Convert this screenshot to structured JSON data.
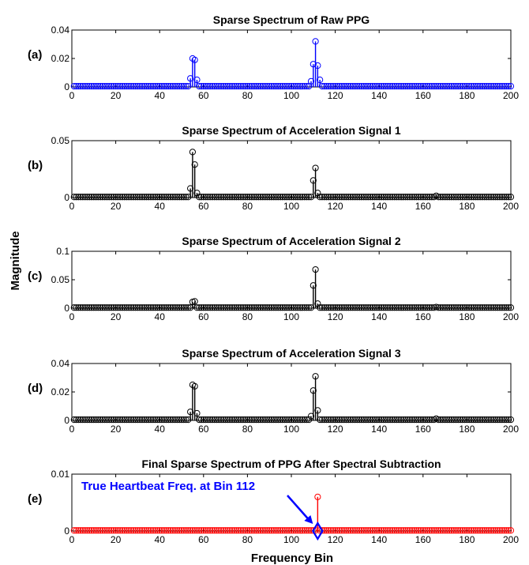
{
  "figure": {
    "ylabel": "Magnitude",
    "xlabel": "Frequency Bin"
  },
  "chart_data": [
    {
      "type": "stem",
      "panel_label": "(a)",
      "title": "Sparse Spectrum of Raw PPG",
      "color": "#0000ff",
      "xlim": [
        0,
        200
      ],
      "ylim": [
        0,
        0.04
      ],
      "xticks": [
        0,
        20,
        40,
        60,
        80,
        100,
        120,
        140,
        160,
        180,
        200
      ],
      "yticks": [
        0,
        0.02,
        0.04
      ],
      "ytick_labels": [
        "0",
        "0.02",
        "0.04"
      ],
      "baseline_value": 0.0005,
      "peaks": [
        [
          54,
          0.006
        ],
        [
          55,
          0.02
        ],
        [
          56,
          0.019
        ],
        [
          57,
          0.005
        ],
        [
          109,
          0.004
        ],
        [
          110,
          0.016
        ],
        [
          111,
          0.032
        ],
        [
          112,
          0.015
        ],
        [
          113,
          0.005
        ]
      ]
    },
    {
      "type": "stem",
      "panel_label": "(b)",
      "title": "Sparse Spectrum of Acceleration Signal 1",
      "color": "#000000",
      "xlim": [
        0,
        200
      ],
      "ylim": [
        0,
        0.05
      ],
      "xticks": [
        0,
        20,
        40,
        60,
        80,
        100,
        120,
        140,
        160,
        180,
        200
      ],
      "yticks": [
        0,
        0.05
      ],
      "ytick_labels": [
        "0",
        "0.05"
      ],
      "baseline_value": 0.0005,
      "peaks": [
        [
          54,
          0.008
        ],
        [
          55,
          0.04
        ],
        [
          56,
          0.029
        ],
        [
          57,
          0.004
        ],
        [
          110,
          0.015
        ],
        [
          111,
          0.026
        ],
        [
          112,
          0.004
        ],
        [
          166,
          0.0015
        ]
      ]
    },
    {
      "type": "stem",
      "panel_label": "(c)",
      "title": "Sparse Spectrum of Acceleration Signal 2",
      "color": "#000000",
      "xlim": [
        0,
        200
      ],
      "ylim": [
        0,
        0.1
      ],
      "xticks": [
        0,
        20,
        40,
        60,
        80,
        100,
        120,
        140,
        160,
        180,
        200
      ],
      "yticks": [
        0,
        0.05,
        0.1
      ],
      "ytick_labels": [
        "0",
        "0.05",
        "0.1"
      ],
      "baseline_value": 0.001,
      "peaks": [
        [
          55,
          0.011
        ],
        [
          56,
          0.012
        ],
        [
          110,
          0.04
        ],
        [
          111,
          0.068
        ],
        [
          112,
          0.008
        ],
        [
          166,
          0.002
        ]
      ]
    },
    {
      "type": "stem",
      "panel_label": "(d)",
      "title": "Sparse Spectrum of Acceleration Signal 3",
      "color": "#000000",
      "xlim": [
        0,
        200
      ],
      "ylim": [
        0,
        0.04
      ],
      "xticks": [
        0,
        20,
        40,
        60,
        80,
        100,
        120,
        140,
        160,
        180,
        200
      ],
      "yticks": [
        0,
        0.02,
        0.04
      ],
      "ytick_labels": [
        "0",
        "0.02",
        "0.04"
      ],
      "baseline_value": 0.0005,
      "peaks": [
        [
          54,
          0.006
        ],
        [
          55,
          0.025
        ],
        [
          56,
          0.024
        ],
        [
          57,
          0.005
        ],
        [
          109,
          0.003
        ],
        [
          110,
          0.021
        ],
        [
          111,
          0.031
        ],
        [
          112,
          0.007
        ],
        [
          166,
          0.0012
        ]
      ]
    },
    {
      "type": "stem",
      "panel_label": "(e)",
      "title": "Final Sparse Spectrum of PPG After Spectral Subtraction",
      "color": "#ff0000",
      "xlim": [
        0,
        200
      ],
      "ylim": [
        0,
        0.01
      ],
      "xticks": [
        0,
        20,
        40,
        60,
        80,
        100,
        120,
        140,
        160,
        180,
        200
      ],
      "yticks": [
        0,
        0.01
      ],
      "ytick_labels": [
        "0",
        "0.01"
      ],
      "baseline_value": 0.0001,
      "peaks": [
        [
          112,
          0.006
        ]
      ],
      "annotation": {
        "text": "True Heartbeat Freq. at Bin 112",
        "color": "#0000ff",
        "marker": "diamond",
        "x": 112,
        "y": 0
      }
    }
  ]
}
